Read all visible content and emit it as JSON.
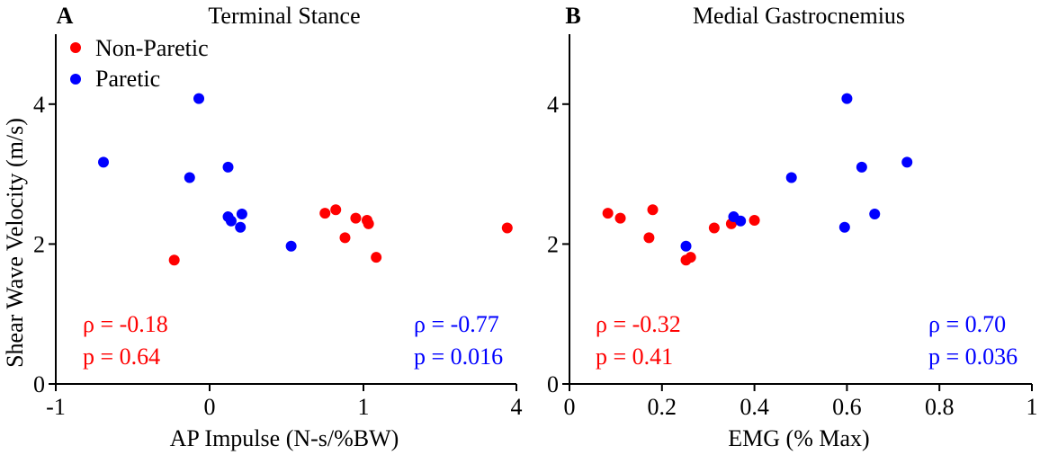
{
  "colors": {
    "non_paretic": "#ff0000",
    "paretic": "#0000ff",
    "axis": "#000000"
  },
  "ylabel": "Shear Wave Velocity (m/s)",
  "legend": {
    "non_paretic": "Non-Paretic",
    "paretic": "Paretic"
  },
  "chart_data": [
    {
      "type": "scatter",
      "panel_label": "A",
      "title": "Terminal Stance",
      "xlabel": "AP Impulse (N-s/%BW)",
      "ylabel": "Shear Wave Velocity (m/s)",
      "xlim": [
        -1,
        4
      ],
      "ylim": [
        0,
        5
      ],
      "x_ticks": [
        -1,
        0,
        1,
        4
      ],
      "x_tick_labels": [
        "-1",
        "0",
        "1",
        "4"
      ],
      "y_ticks": [
        0,
        2,
        4
      ],
      "y_tick_labels": [
        "0",
        "2",
        "4"
      ],
      "legend_position": "top-left",
      "grid": false,
      "series": [
        {
          "name": "Non-Paretic",
          "color": "#ff0000",
          "points": [
            [
              -0.23,
              1.77
            ],
            [
              0.75,
              2.44
            ],
            [
              0.82,
              2.49
            ],
            [
              0.88,
              2.09
            ],
            [
              0.95,
              2.37
            ],
            [
              1.07,
              2.34
            ],
            [
              1.1,
              2.29
            ],
            [
              1.25,
              1.81
            ],
            [
              3.82,
              2.23
            ]
          ]
        },
        {
          "name": "Paretic",
          "color": "#0000ff",
          "points": [
            [
              -0.07,
              4.08
            ],
            [
              -0.69,
              3.17
            ],
            [
              -0.13,
              2.95
            ],
            [
              0.12,
              3.1
            ],
            [
              0.12,
              2.39
            ],
            [
              0.14,
              2.33
            ],
            [
              0.21,
              2.43
            ],
            [
              0.2,
              2.24
            ],
            [
              0.53,
              1.97
            ]
          ]
        }
      ],
      "annotations": [
        {
          "text": "ρ = -0.18",
          "color": "#ff0000",
          "position": "bottom-left"
        },
        {
          "text": "p = 0.64",
          "color": "#ff0000",
          "position": "bottom-left"
        },
        {
          "text": "ρ = -0.77",
          "color": "#0000ff",
          "position": "bottom-right"
        },
        {
          "text": "p = 0.016",
          "color": "#0000ff",
          "position": "bottom-right"
        }
      ]
    },
    {
      "type": "scatter",
      "panel_label": "B",
      "title": "Medial Gastrocnemius",
      "xlabel": "EMG (% Max)",
      "ylabel": "",
      "xlim": [
        0,
        1
      ],
      "ylim": [
        0,
        5
      ],
      "x_ticks": [
        0,
        0.2,
        0.4,
        0.6,
        0.8,
        1
      ],
      "x_tick_labels": [
        "0",
        "0.2",
        "0.4",
        "0.6",
        "0.8",
        "1"
      ],
      "y_ticks": [
        0,
        2,
        4
      ],
      "y_tick_labels": [
        "0",
        "2",
        "4"
      ],
      "legend_position": "none",
      "grid": false,
      "series": [
        {
          "name": "Non-Paretic",
          "color": "#ff0000",
          "points": [
            [
              0.083,
              2.44
            ],
            [
              0.11,
              2.37
            ],
            [
              0.172,
              2.09
            ],
            [
              0.18,
              2.49
            ],
            [
              0.252,
              1.77
            ],
            [
              0.262,
              1.81
            ],
            [
              0.313,
              2.23
            ],
            [
              0.35,
              2.29
            ],
            [
              0.4,
              2.34
            ]
          ]
        },
        {
          "name": "Paretic",
          "color": "#0000ff",
          "points": [
            [
              0.6,
              4.08
            ],
            [
              0.73,
              3.17
            ],
            [
              0.48,
              2.95
            ],
            [
              0.632,
              3.1
            ],
            [
              0.355,
              2.39
            ],
            [
              0.37,
              2.33
            ],
            [
              0.66,
              2.43
            ],
            [
              0.595,
              2.24
            ],
            [
              0.252,
              1.97
            ]
          ]
        }
      ],
      "annotations": [
        {
          "text": "ρ = -0.32",
          "color": "#ff0000",
          "position": "bottom-left"
        },
        {
          "text": "p = 0.41",
          "color": "#ff0000",
          "position": "bottom-left"
        },
        {
          "text": "ρ = 0.70",
          "color": "#0000ff",
          "position": "bottom-right"
        },
        {
          "text": "p = 0.036",
          "color": "#0000ff",
          "position": "bottom-right"
        }
      ]
    }
  ]
}
